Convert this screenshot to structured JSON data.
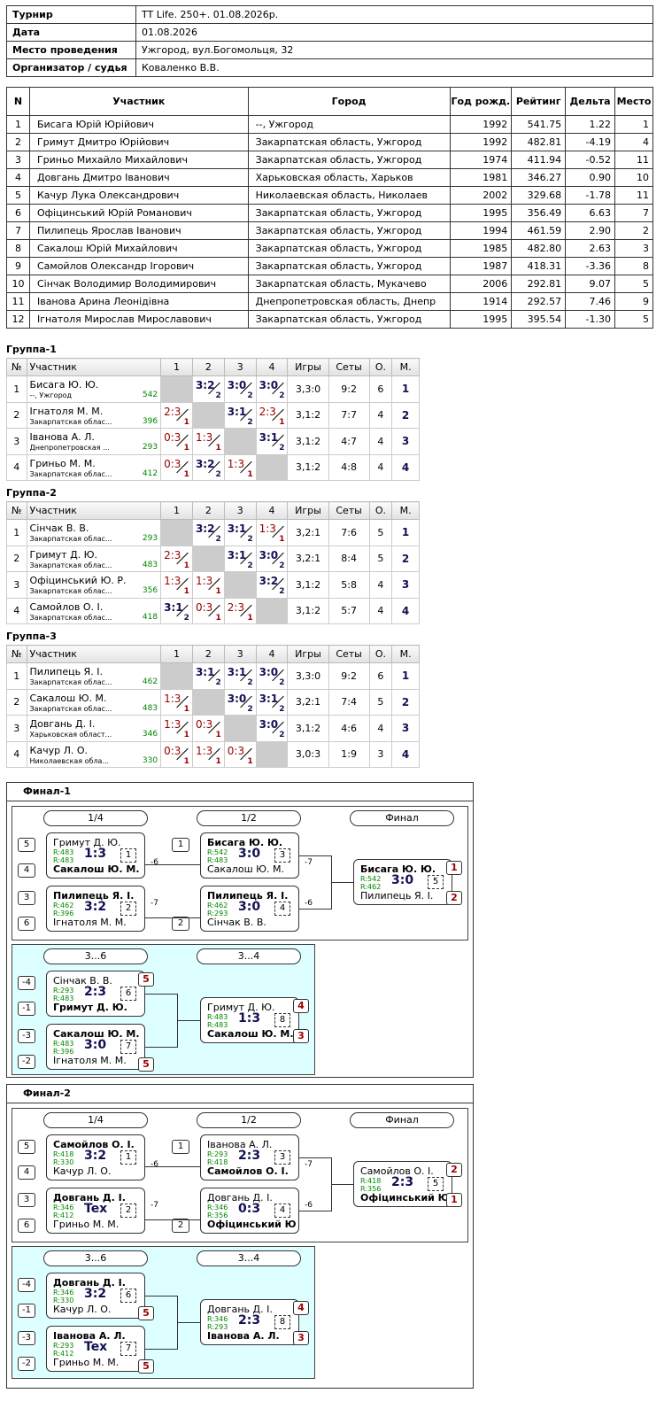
{
  "info": [
    {
      "k": "Турнир",
      "v": "TT Life. 250+. 01.08.2026р."
    },
    {
      "k": "Дата",
      "v": "01.08.2026"
    },
    {
      "k": "Место проведения",
      "v": "Ужгород, вул.Богомольця, 32"
    },
    {
      "k": "Организатор / судья",
      "v": "Коваленко В.В."
    }
  ],
  "players_headers": [
    "N",
    "Участник",
    "Город",
    "Год рожд.",
    "Рейтинг",
    "Дельта",
    "Место"
  ],
  "players": [
    [
      "1",
      "Бисага Юрій Юрійович",
      "--, Ужгород",
      "1992",
      "541.75",
      "1.22",
      "1"
    ],
    [
      "2",
      "Гримут Дмитро Юрійович",
      "Закарпатская область, Ужгород",
      "1992",
      "482.81",
      "-4.19",
      "4"
    ],
    [
      "3",
      "Гриньо Михайло Михайлович",
      "Закарпатская область, Ужгород",
      "1974",
      "411.94",
      "-0.52",
      "11"
    ],
    [
      "4",
      "Довгань Дмитро Іванович",
      "Харьковская область, Харьков",
      "1981",
      "346.27",
      "0.90",
      "10"
    ],
    [
      "5",
      "Качур Лука Олександрович",
      "Николаевская область, Николаев",
      "2002",
      "329.68",
      "-1.78",
      "11"
    ],
    [
      "6",
      "Офіцинський Юрій Романович",
      "Закарпатская область, Ужгород",
      "1995",
      "356.49",
      "6.63",
      "7"
    ],
    [
      "7",
      "Пилипець Ярослав Іванович",
      "Закарпатская область, Ужгород",
      "1994",
      "461.59",
      "2.90",
      "2"
    ],
    [
      "8",
      "Сакалош Юрій Михайлович",
      "Закарпатская область, Ужгород",
      "1985",
      "482.80",
      "2.63",
      "3"
    ],
    [
      "9",
      "Самойлов Олександр Ігорович",
      "Закарпатская область, Ужгород",
      "1987",
      "418.31",
      "-3.36",
      "8"
    ],
    [
      "10",
      "Сінчак Володимир Володимирович",
      "Закарпатская область, Мукачево",
      "2006",
      "292.81",
      "9.07",
      "5"
    ],
    [
      "11",
      "Іванова Арина Леонідівна",
      "Днепропетровская область, Днепр",
      "1914",
      "292.57",
      "7.46",
      "9"
    ],
    [
      "12",
      "Ігнатоля Мирослав Мирославович",
      "Закарпатская область, Ужгород",
      "1995",
      "395.54",
      "-1.30",
      "5"
    ]
  ],
  "group_headers": [
    "№",
    "Участник",
    "1",
    "2",
    "3",
    "4",
    "Игры",
    "Сеты",
    "О.",
    "М."
  ],
  "groups": [
    {
      "title": "Группа-1",
      "rows": [
        {
          "n": "1",
          "name": "Бисага Ю. Ю.",
          "city": "--, Ужгород",
          "rating": "542",
          "res": [
            "X",
            [
              "3:2",
              "2",
              "w"
            ],
            [
              "3:0",
              "2",
              "w"
            ],
            [
              "3:0",
              "2",
              "w"
            ]
          ],
          "games": "3,3:0",
          "sets": "9:2",
          "pts": "6",
          "pl": "1"
        },
        {
          "n": "2",
          "name": "Ігнатоля М. М.",
          "city": "Закарпатская облас...",
          "rating": "396",
          "res": [
            [
              "2:3",
              "1",
              "l"
            ],
            "X",
            [
              "3:1",
              "2",
              "w"
            ],
            [
              "2:3",
              "1",
              "l"
            ]
          ],
          "games": "3,1:2",
          "sets": "7:7",
          "pts": "4",
          "pl": "2"
        },
        {
          "n": "3",
          "name": "Іванова А. Л.",
          "city": "Днепропетровская ...",
          "rating": "293",
          "res": [
            [
              "0:3",
              "1",
              "l"
            ],
            [
              "1:3",
              "1",
              "l"
            ],
            "X",
            [
              "3:1",
              "2",
              "w"
            ]
          ],
          "games": "3,1:2",
          "sets": "4:7",
          "pts": "4",
          "pl": "3"
        },
        {
          "n": "4",
          "name": "Гриньо М. М.",
          "city": "Закарпатская облас...",
          "rating": "412",
          "res": [
            [
              "0:3",
              "1",
              "l"
            ],
            [
              "3:2",
              "2",
              "w"
            ],
            [
              "1:3",
              "1",
              "l"
            ],
            "X"
          ],
          "games": "3,1:2",
          "sets": "4:8",
          "pts": "4",
          "pl": "4"
        }
      ]
    },
    {
      "title": "Группа-2",
      "rows": [
        {
          "n": "1",
          "name": "Сінчак В. В.",
          "city": "Закарпатская облас...",
          "rating": "293",
          "res": [
            "X",
            [
              "3:2",
              "2",
              "w"
            ],
            [
              "3:1",
              "2",
              "w"
            ],
            [
              "1:3",
              "1",
              "l"
            ]
          ],
          "games": "3,2:1",
          "sets": "7:6",
          "pts": "5",
          "pl": "1"
        },
        {
          "n": "2",
          "name": "Гримут Д. Ю.",
          "city": "Закарпатская облас...",
          "rating": "483",
          "res": [
            [
              "2:3",
              "1",
              "l"
            ],
            "X",
            [
              "3:1",
              "2",
              "w"
            ],
            [
              "3:0",
              "2",
              "w"
            ]
          ],
          "games": "3,2:1",
          "sets": "8:4",
          "pts": "5",
          "pl": "2"
        },
        {
          "n": "3",
          "name": "Офіцинський Ю. Р.",
          "city": "Закарпатская облас...",
          "rating": "356",
          "res": [
            [
              "1:3",
              "1",
              "l"
            ],
            [
              "1:3",
              "1",
              "l"
            ],
            "X",
            [
              "3:2",
              "2",
              "w"
            ]
          ],
          "games": "3,1:2",
          "sets": "5:8",
          "pts": "4",
          "pl": "3"
        },
        {
          "n": "4",
          "name": "Самойлов О. І.",
          "city": "Закарпатская облас...",
          "rating": "418",
          "res": [
            [
              "3:1",
              "2",
              "w"
            ],
            [
              "0:3",
              "1",
              "l"
            ],
            [
              "2:3",
              "1",
              "l"
            ],
            "X"
          ],
          "games": "3,1:2",
          "sets": "5:7",
          "pts": "4",
          "pl": "4"
        }
      ]
    },
    {
      "title": "Группа-3",
      "rows": [
        {
          "n": "1",
          "name": "Пилипець Я. І.",
          "city": "Закарпатская облас...",
          "rating": "462",
          "res": [
            "X",
            [
              "3:1",
              "2",
              "w"
            ],
            [
              "3:1",
              "2",
              "w"
            ],
            [
              "3:0",
              "2",
              "w"
            ]
          ],
          "games": "3,3:0",
          "sets": "9:2",
          "pts": "6",
          "pl": "1"
        },
        {
          "n": "2",
          "name": "Сакалош Ю. М.",
          "city": "Закарпатская облас...",
          "rating": "483",
          "res": [
            [
              "1:3",
              "1",
              "l"
            ],
            "X",
            [
              "3:0",
              "2",
              "w"
            ],
            [
              "3:1",
              "2",
              "w"
            ]
          ],
          "games": "3,2:1",
          "sets": "7:4",
          "pts": "5",
          "pl": "2"
        },
        {
          "n": "3",
          "name": "Довгань Д. І.",
          "city": "Харьковская област...",
          "rating": "346",
          "res": [
            [
              "1:3",
              "1",
              "l"
            ],
            [
              "0:3",
              "1",
              "l"
            ],
            "X",
            [
              "3:0",
              "2",
              "w"
            ]
          ],
          "games": "3,1:2",
          "sets": "4:6",
          "pts": "4",
          "pl": "3"
        },
        {
          "n": "4",
          "name": "Качур Л. О.",
          "city": "Николаевская обла...",
          "rating": "330",
          "res": [
            [
              "0:3",
              "1",
              "l"
            ],
            [
              "1:3",
              "1",
              "l"
            ],
            [
              "0:3",
              "1",
              "l"
            ],
            "X"
          ],
          "games": "3,0:3",
          "sets": "1:9",
          "pts": "3",
          "pl": "4"
        }
      ]
    }
  ],
  "finals": [
    {
      "title": "Финал-1",
      "h14": "1/4",
      "h12": "1/2",
      "hf": "Финал",
      "h36": "3...6",
      "h34": "3...4",
      "qf1": {
        "sa": "5",
        "sb": "4",
        "a": "Гримут Д. Ю.",
        "ra": "R:483",
        "b": "Сакалош Ю. М.",
        "rb": "R:483",
        "score": "1:3",
        "no": "1",
        "win": "b",
        "lab": "-6"
      },
      "qf2": {
        "sa": "3",
        "sb": "6",
        "a": "Пилипець Я. І.",
        "ra": "R:462",
        "b": "Ігнатоля М. М.",
        "rb": "R:396",
        "score": "3:2",
        "no": "2",
        "win": "a",
        "lab": "-7"
      },
      "sf1": {
        "sa": "1",
        "a": "Бисага Ю. Ю.",
        "ra": "R:542",
        "b": "Сакалош Ю. М.",
        "rb": "R:483",
        "score": "3:0",
        "no": "3",
        "win": "a",
        "lab": "-7"
      },
      "sf2": {
        "sb": "2",
        "a": "Пилипець Я. І.",
        "ra": "R:462",
        "b": "Сінчак В. В.",
        "rb": "R:293",
        "score": "3:0",
        "no": "4",
        "win": "a",
        "lab": "-6"
      },
      "fm": {
        "a": "Бисага Ю. Ю.",
        "ra": "R:542",
        "b": "Пилипець Я. І.",
        "rb": "R:462",
        "score": "3:0",
        "no": "5",
        "win": "a",
        "pa": "1",
        "pb": "2"
      },
      "c1": {
        "sa": "-4",
        "sb": "-1",
        "a": "Сінчак В. В.",
        "ra": "R:293",
        "b": "Гримут Д. Ю.",
        "rb": "R:483",
        "score": "2:3",
        "no": "6",
        "win": "b",
        "pa": "5"
      },
      "c2": {
        "sa": "-3",
        "sb": "-2",
        "a": "Сакалош Ю. М.",
        "ra": "R:483",
        "b": "Ігнатоля М. М.",
        "rb": "R:396",
        "score": "3:0",
        "no": "7",
        "win": "a",
        "pb": "5"
      },
      "c3": {
        "a": "Гримут Д. Ю.",
        "ra": "R:483",
        "b": "Сакалош Ю. М.",
        "rb": "R:483",
        "score": "1:3",
        "no": "8",
        "win": "b",
        "pa": "4",
        "pb": "3"
      }
    },
    {
      "title": "Финал-2",
      "h14": "1/4",
      "h12": "1/2",
      "hf": "Финал",
      "h36": "3...6",
      "h34": "3...4",
      "qf1": {
        "sa": "5",
        "sb": "4",
        "a": "Самойлов О. І.",
        "ra": "R:418",
        "b": "Качур Л. О.",
        "rb": "R:330",
        "score": "3:2",
        "no": "1",
        "win": "a",
        "lab": "-6"
      },
      "qf2": {
        "sa": "3",
        "sb": "6",
        "a": "Довгань Д. І.",
        "ra": "R:346",
        "b": "Гриньо М. М.",
        "rb": "R:412",
        "score": "Tex",
        "no": "2",
        "win": "a",
        "lab": "-7"
      },
      "sf1": {
        "sa": "1",
        "a": "Іванова А. Л.",
        "ra": "R:293",
        "b": "Самойлов О. І.",
        "rb": "R:418",
        "score": "2:3",
        "no": "3",
        "win": "b",
        "lab": "-7"
      },
      "sf2": {
        "sb": "2",
        "a": "Довгань Д. І.",
        "ra": "R:346",
        "b": "Офіцинський Ю...",
        "rb": "R:356",
        "score": "0:3",
        "no": "4",
        "win": "b",
        "lab": "-6"
      },
      "fm": {
        "a": "Самойлов О. І.",
        "ra": "R:418",
        "b": "Офіцинський Ю...",
        "rb": "R:356",
        "score": "2:3",
        "no": "5",
        "win": "b",
        "pa": "2",
        "pb": "1"
      },
      "c1": {
        "sa": "-4",
        "sb": "-1",
        "a": "Довгань Д. І.",
        "ra": "R:346",
        "b": "Качур Л. О.",
        "rb": "R:330",
        "score": "3:2",
        "no": "6",
        "win": "a",
        "pb": "5"
      },
      "c2": {
        "sa": "-3",
        "sb": "-2",
        "a": "Іванова А. Л.",
        "ra": "R:293",
        "b": "Гриньо М. М.",
        "rb": "R:412",
        "score": "Tex",
        "no": "7",
        "win": "a",
        "pb": "5"
      },
      "c3": {
        "a": "Довгань Д. І.",
        "ra": "R:346",
        "b": "Іванова А. Л.",
        "rb": "R:293",
        "score": "2:3",
        "no": "8",
        "win": "b",
        "pa": "4",
        "pb": "3"
      }
    }
  ]
}
